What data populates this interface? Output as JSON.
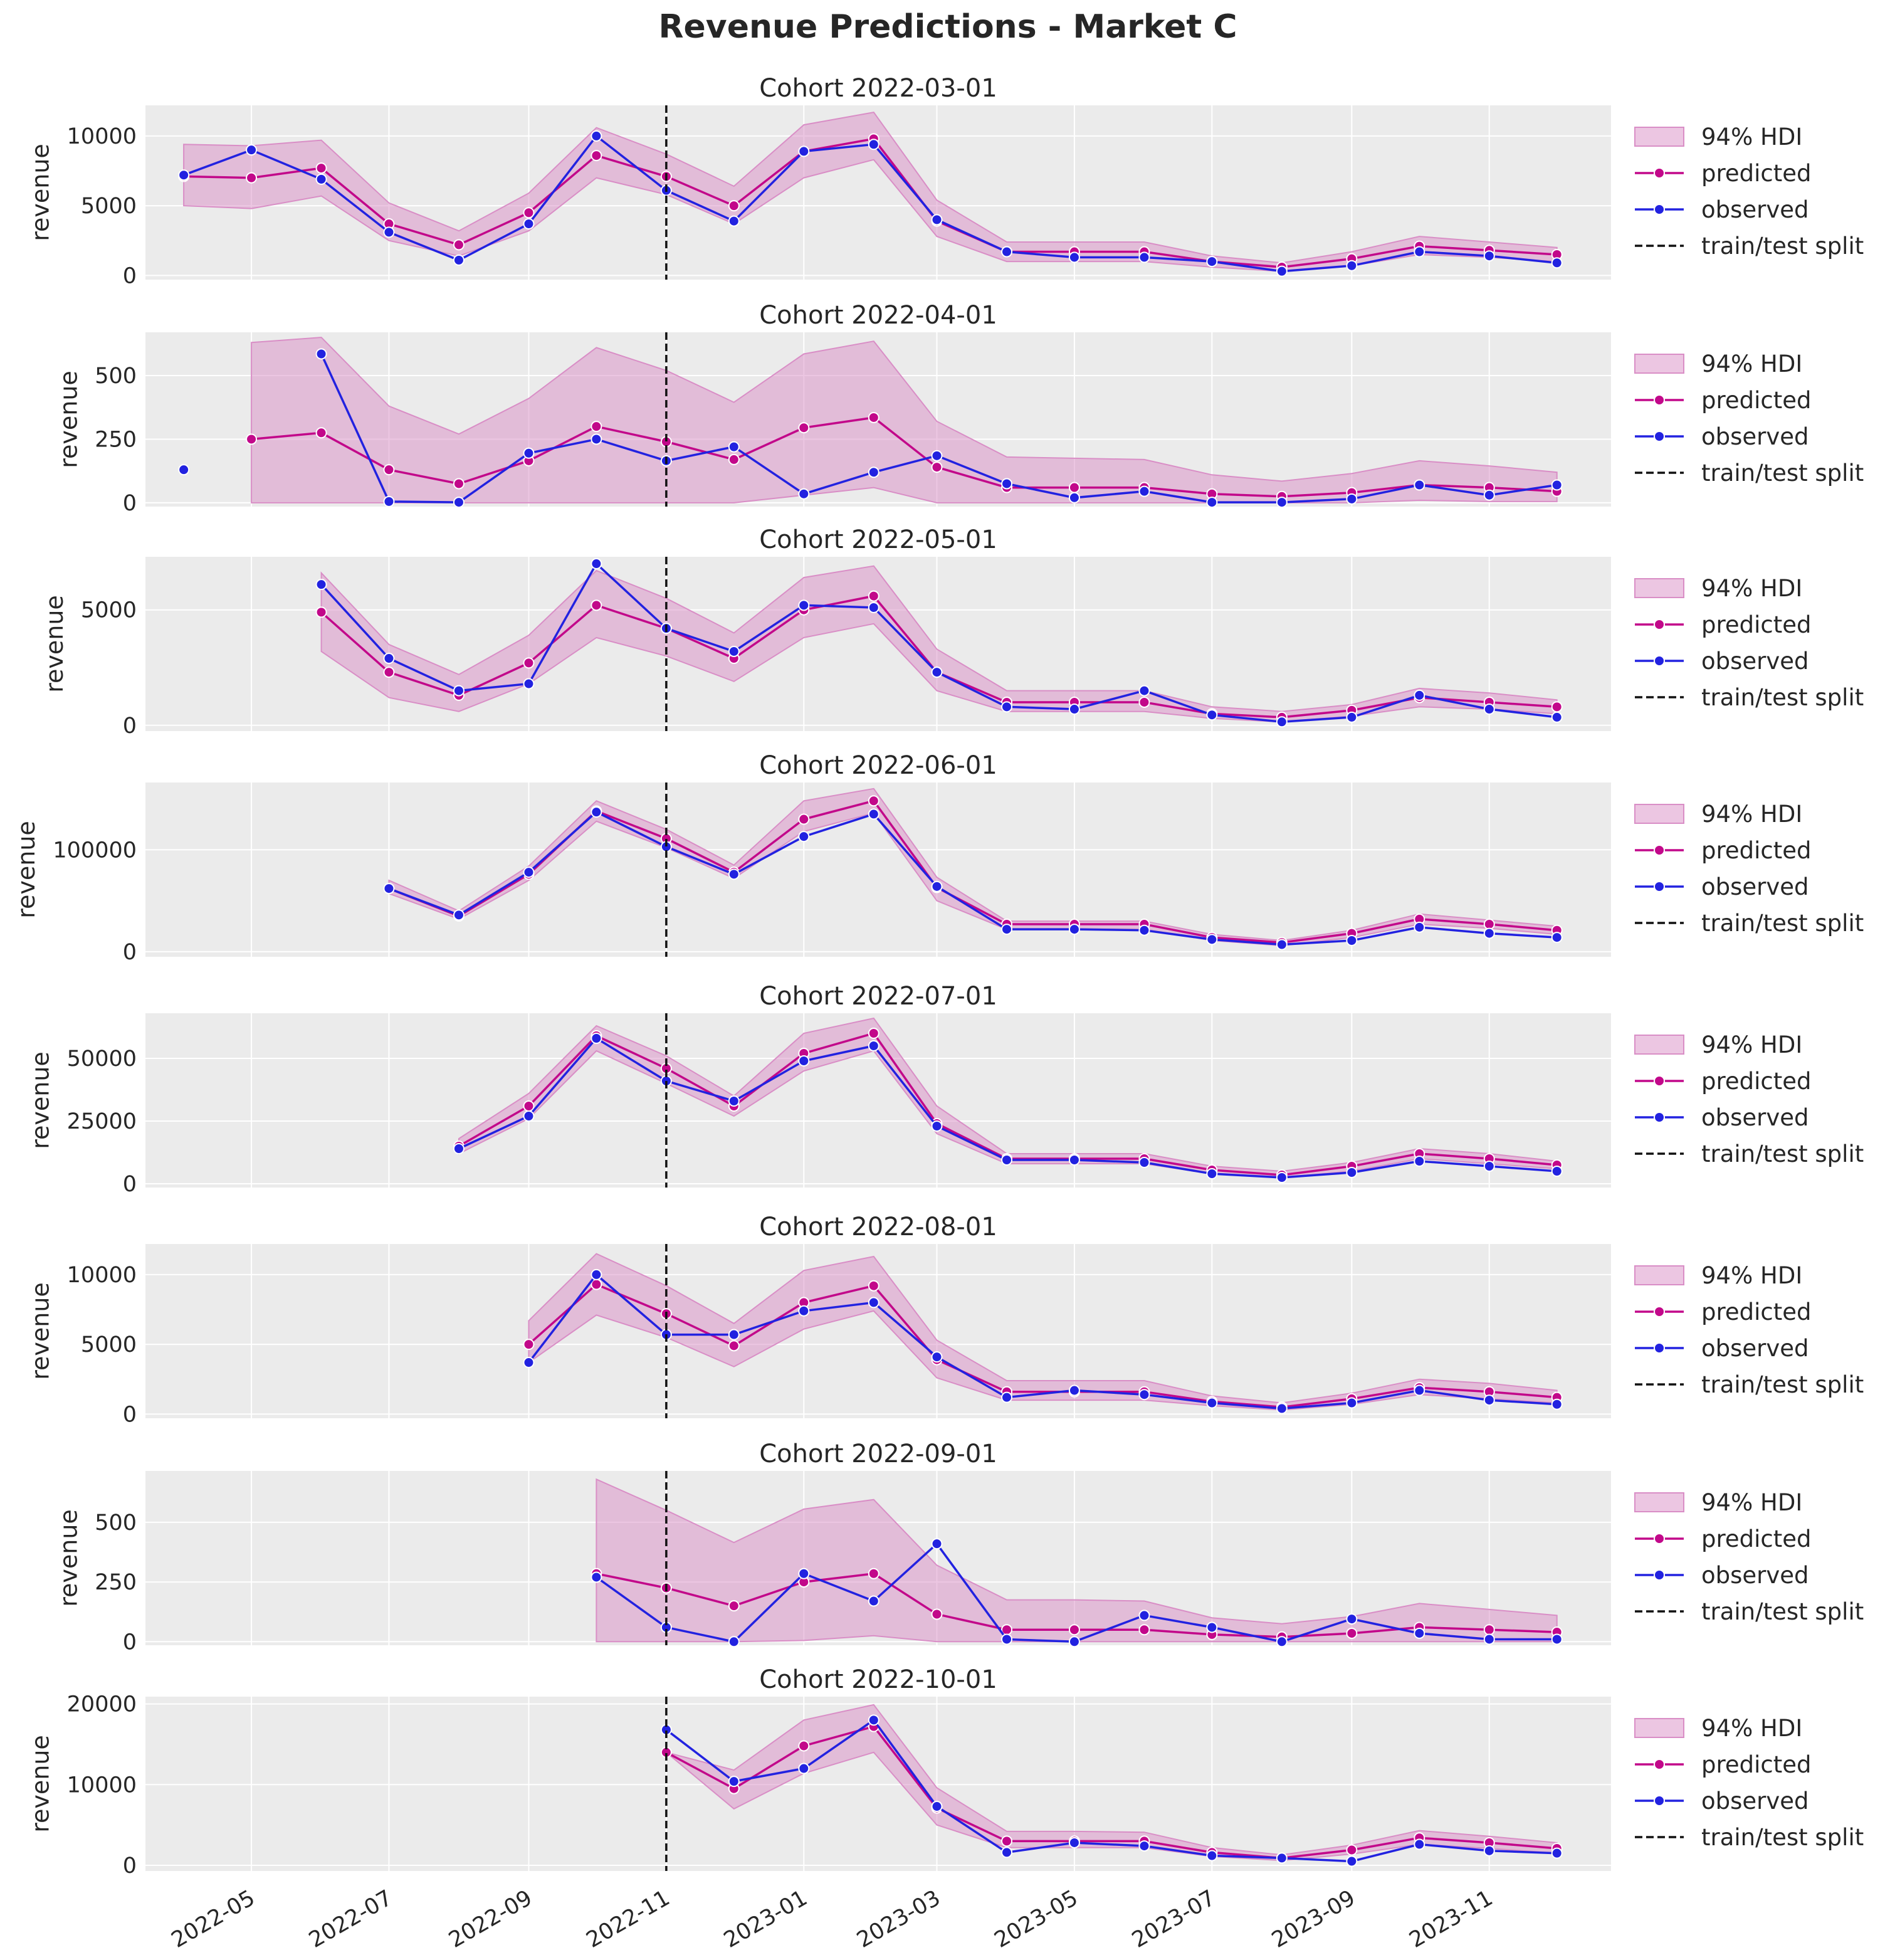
{
  "chart_data": {
    "type": "line",
    "title": "Revenue Predictions - Market C",
    "x_axis": {
      "type": "date",
      "range": [
        "2022-03-15",
        "2023-12-25"
      ],
      "tick_values": [
        "2022-05-01",
        "2022-07-01",
        "2022-09-01",
        "2022-11-01",
        "2023-01-01",
        "2023-03-01",
        "2023-05-01",
        "2023-07-01",
        "2023-09-01",
        "2023-11-01"
      ],
      "tick_labels": [
        "2022-05",
        "2022-07",
        "2022-09",
        "2022-11",
        "2023-01",
        "2023-03",
        "2023-05",
        "2023-07",
        "2023-09",
        "2023-11"
      ]
    },
    "ylabel": "revenue",
    "train_test_split": "2022-11-01",
    "legend": {
      "placement": "right",
      "entries": [
        "94% HDI",
        "predicted",
        "observed",
        "train/test split"
      ]
    },
    "colors": {
      "predicted": "#c2088a",
      "observed": "#2222e0",
      "hdi": "#d98ec6",
      "split": "#111111",
      "panel_background": "#ebebeb",
      "grid": "#ffffff"
    },
    "dates": [
      "2022-04-01",
      "2022-05-01",
      "2022-06-01",
      "2022-07-01",
      "2022-08-01",
      "2022-09-01",
      "2022-10-01",
      "2022-11-01",
      "2022-12-01",
      "2023-01-01",
      "2023-02-01",
      "2023-03-01",
      "2023-04-01",
      "2023-05-01",
      "2023-06-01",
      "2023-07-01",
      "2023-08-01",
      "2023-09-01",
      "2023-10-01",
      "2023-11-01",
      "2023-12-01"
    ],
    "panels": [
      {
        "title": "Cohort 2022-03-01",
        "ylim": [
          -300,
          12200
        ],
        "yticks": [
          0,
          5000,
          10000
        ],
        "ytick_labels": [
          "0",
          "5000",
          "10000"
        ],
        "predicted": [
          7100,
          7000,
          7700,
          3700,
          2200,
          4500,
          8600,
          7100,
          5000,
          8900,
          9800,
          3900,
          1700,
          1700,
          1700,
          1000,
          600,
          1200,
          2100,
          1800,
          1500
        ],
        "observed": [
          7200,
          9000,
          6900,
          3100,
          1100,
          3700,
          10000,
          6100,
          3900,
          8900,
          9400,
          4000,
          1700,
          1300,
          1300,
          1000,
          300,
          700,
          1700,
          1400,
          900
        ],
        "hdi_lower": [
          5000,
          4800,
          5700,
          2500,
          1400,
          3200,
          7000,
          5800,
          3700,
          7000,
          8300,
          2800,
          1000,
          1000,
          1000,
          600,
          300,
          700,
          1500,
          1300,
          1000
        ],
        "hdi_upper": [
          9400,
          9300,
          9700,
          5200,
          3200,
          5900,
          10600,
          8700,
          6400,
          10800,
          11700,
          5400,
          2400,
          2400,
          2400,
          1400,
          900,
          1700,
          2800,
          2400,
          2000
        ]
      },
      {
        "title": "Cohort 2022-04-01",
        "ylim": [
          -15,
          670
        ],
        "yticks": [
          0,
          250,
          500
        ],
        "ytick_labels": [
          "0",
          "250",
          "500"
        ],
        "predicted": [
          null,
          250,
          275,
          130,
          75,
          165,
          300,
          240,
          170,
          295,
          335,
          140,
          60,
          60,
          60,
          35,
          25,
          40,
          70,
          60,
          45
        ],
        "observed": [
          130,
          null,
          585,
          5,
          2,
          195,
          250,
          165,
          220,
          35,
          120,
          185,
          75,
          20,
          45,
          2,
          2,
          15,
          70,
          30,
          70
        ],
        "hdi_lower": [
          null,
          0,
          0,
          0,
          0,
          0,
          0,
          0,
          0,
          30,
          60,
          0,
          0,
          0,
          0,
          0,
          0,
          0,
          10,
          5,
          5
        ],
        "hdi_upper": [
          null,
          630,
          650,
          380,
          270,
          410,
          610,
          520,
          395,
          585,
          635,
          320,
          180,
          175,
          170,
          110,
          85,
          115,
          165,
          145,
          120
        ]
      },
      {
        "title": "Cohort 2022-05-01",
        "ylim": [
          -250,
          7300
        ],
        "yticks": [
          0,
          5000
        ],
        "ytick_labels": [
          "0",
          "5000"
        ],
        "predicted": [
          null,
          null,
          4900,
          2300,
          1300,
          2700,
          5200,
          4200,
          2900,
          5000,
          5600,
          2300,
          1000,
          1000,
          1000,
          500,
          350,
          650,
          1200,
          1000,
          800
        ],
        "observed": [
          null,
          null,
          6100,
          2900,
          1500,
          1800,
          7000,
          4200,
          3200,
          5200,
          5100,
          2300,
          800,
          700,
          1500,
          450,
          150,
          350,
          1300,
          700,
          350
        ],
        "hdi_lower": [
          null,
          null,
          3200,
          1200,
          600,
          1800,
          3800,
          3000,
          1900,
          3800,
          4400,
          1500,
          600,
          600,
          600,
          300,
          150,
          400,
          800,
          700,
          500
        ],
        "hdi_upper": [
          null,
          null,
          6600,
          3500,
          2200,
          3900,
          6700,
          5500,
          4000,
          6400,
          6900,
          3300,
          1500,
          1500,
          1500,
          800,
          600,
          900,
          1600,
          1400,
          1100
        ]
      },
      {
        "title": "Cohort 2022-06-01",
        "ylim": [
          -5000,
          166000
        ],
        "yticks": [
          0,
          100000
        ],
        "ytick_labels": [
          "0",
          "100000"
        ],
        "predicted": [
          null,
          null,
          null,
          62000,
          35000,
          76000,
          138000,
          111000,
          78000,
          130000,
          148000,
          63000,
          27000,
          27000,
          27000,
          14000,
          9000,
          18000,
          32000,
          27000,
          21000
        ],
        "observed": [
          null,
          null,
          null,
          62000,
          36000,
          78000,
          137000,
          103000,
          76000,
          113000,
          135000,
          64000,
          22000,
          22000,
          21000,
          12000,
          7000,
          11000,
          24000,
          18000,
          14000
        ],
        "hdi_lower": [
          null,
          null,
          null,
          57000,
          32000,
          70000,
          128000,
          102000,
          72000,
          118000,
          136000,
          50000,
          22000,
          22000,
          22000,
          11000,
          6000,
          14000,
          27000,
          23000,
          17000
        ],
        "hdi_upper": [
          null,
          null,
          null,
          70000,
          40000,
          84000,
          148000,
          120000,
          85000,
          148000,
          160000,
          73000,
          30000,
          30000,
          30000,
          17000,
          11000,
          21000,
          37000,
          31000,
          25000
        ]
      },
      {
        "title": "Cohort 2022-07-01",
        "ylim": [
          -1500,
          68000
        ],
        "yticks": [
          0,
          25000,
          50000
        ],
        "ytick_labels": [
          "0",
          "25000",
          "50000"
        ],
        "predicted": [
          null,
          null,
          null,
          null,
          15000,
          31000,
          59000,
          46000,
          31000,
          52000,
          60000,
          24000,
          10000,
          10000,
          10000,
          5500,
          3500,
          7000,
          12000,
          10000,
          7500
        ],
        "observed": [
          null,
          null,
          null,
          null,
          14000,
          27000,
          58000,
          41000,
          33000,
          49000,
          55000,
          23000,
          9500,
          9500,
          8500,
          4000,
          2500,
          4500,
          9000,
          7000,
          5000
        ],
        "hdi_lower": [
          null,
          null,
          null,
          null,
          12000,
          26000,
          53000,
          40000,
          27000,
          45000,
          53000,
          20000,
          8000,
          8000,
          8000,
          4000,
          2500,
          5000,
          10000,
          8000,
          6000
        ],
        "hdi_upper": [
          null,
          null,
          null,
          null,
          18000,
          36000,
          63000,
          51000,
          35000,
          60000,
          66000,
          31000,
          12000,
          12000,
          12000,
          7000,
          5000,
          8500,
          14000,
          12000,
          9000
        ]
      },
      {
        "title": "Cohort 2022-08-01",
        "ylim": [
          -300,
          12200
        ],
        "yticks": [
          0,
          5000,
          10000
        ],
        "ytick_labels": [
          "0",
          "5000",
          "10000"
        ],
        "predicted": [
          null,
          null,
          null,
          null,
          null,
          5000,
          9300,
          7200,
          4900,
          8000,
          9200,
          3900,
          1600,
          1600,
          1600,
          900,
          500,
          1100,
          1900,
          1600,
          1200
        ],
        "observed": [
          null,
          null,
          null,
          null,
          null,
          3700,
          10000,
          5700,
          5700,
          7400,
          8000,
          4100,
          1200,
          1700,
          1400,
          800,
          400,
          800,
          1700,
          1000,
          700
        ],
        "hdi_lower": [
          null,
          null,
          null,
          null,
          null,
          3700,
          7100,
          5500,
          3400,
          6100,
          7400,
          2600,
          1000,
          1000,
          1000,
          600,
          300,
          700,
          1400,
          1100,
          800
        ],
        "hdi_upper": [
          null,
          null,
          null,
          null,
          null,
          6700,
          11500,
          9200,
          6500,
          10300,
          11300,
          5300,
          2400,
          2400,
          2400,
          1300,
          800,
          1500,
          2500,
          2200,
          1700
        ]
      },
      {
        "title": "Cohort 2022-09-01",
        "ylim": [
          -15,
          715
        ],
        "yticks": [
          0,
          250,
          500
        ],
        "ytick_labels": [
          "0",
          "250",
          "500"
        ],
        "predicted": [
          null,
          null,
          null,
          null,
          null,
          null,
          285,
          225,
          150,
          250,
          285,
          115,
          50,
          50,
          50,
          30,
          20,
          35,
          60,
          50,
          40
        ],
        "observed": [
          null,
          null,
          null,
          null,
          null,
          null,
          270,
          60,
          0,
          285,
          170,
          410,
          10,
          0,
          110,
          60,
          0,
          95,
          35,
          10,
          10
        ],
        "hdi_lower": [
          null,
          null,
          null,
          null,
          null,
          null,
          0,
          0,
          0,
          5,
          25,
          0,
          0,
          0,
          0,
          0,
          0,
          0,
          0,
          0,
          0
        ],
        "hdi_upper": [
          null,
          null,
          null,
          null,
          null,
          null,
          680,
          550,
          415,
          555,
          595,
          320,
          175,
          175,
          170,
          100,
          75,
          105,
          160,
          135,
          110
        ]
      },
      {
        "title": "Cohort 2022-10-01",
        "ylim": [
          -700,
          20900
        ],
        "yticks": [
          0,
          10000,
          20000
        ],
        "ytick_labels": [
          "0",
          "10000",
          "20000"
        ],
        "predicted": [
          null,
          null,
          null,
          null,
          null,
          null,
          null,
          14000,
          9500,
          14800,
          17200,
          7100,
          3000,
          3000,
          3000,
          1600,
          900,
          1900,
          3400,
          2800,
          2100
        ],
        "observed": [
          null,
          null,
          null,
          null,
          null,
          null,
          null,
          16800,
          10400,
          12000,
          18000,
          7300,
          1600,
          2800,
          2400,
          1200,
          900,
          500,
          2600,
          1800,
          1500
        ],
        "hdi_lower": [
          null,
          null,
          null,
          null,
          null,
          null,
          null,
          14000,
          7000,
          11400,
          14000,
          5000,
          2200,
          2200,
          2200,
          1100,
          600,
          1400,
          2600,
          2100,
          1500
        ],
        "hdi_upper": [
          null,
          null,
          null,
          null,
          null,
          null,
          null,
          14000,
          11800,
          18000,
          19900,
          9600,
          4200,
          4200,
          4100,
          2200,
          1300,
          2500,
          4300,
          3600,
          2800
        ]
      }
    ]
  }
}
